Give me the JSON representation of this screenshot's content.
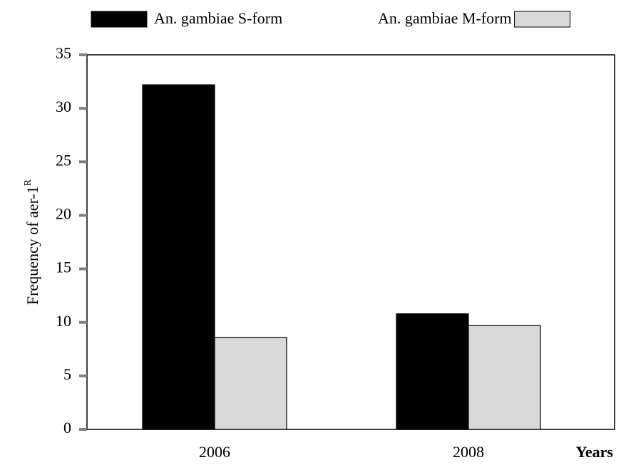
{
  "chart_data": {
    "type": "bar",
    "ylabel": "Frequency of aer-1",
    "ylabel_superscript": "R",
    "xlabel": "Years",
    "categories": [
      "2006",
      "2008"
    ],
    "series": [
      {
        "name": "An. gambiae S-form",
        "color": "#000000",
        "values": [
          32.2,
          10.8
        ]
      },
      {
        "name": "An. gambiae M-form",
        "color": "#d9d9d9",
        "values": [
          8.6,
          9.7
        ]
      }
    ],
    "ylim": [
      0,
      35
    ],
    "yticks": [
      0,
      5,
      10,
      15,
      20,
      25,
      30,
      35
    ],
    "legend": "top"
  }
}
